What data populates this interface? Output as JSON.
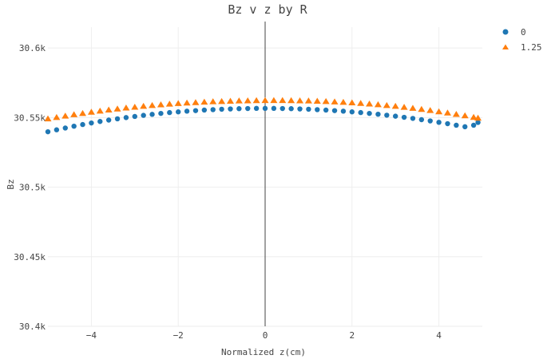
{
  "chart_data": {
    "type": "scatter",
    "title": "Bz v z by R",
    "xlabel": "Normalized z(cm)",
    "ylabel": "Bz",
    "xlim": [
      -5.0,
      5.0
    ],
    "ylim": [
      30400,
      30615
    ],
    "x_ticks": [
      -4,
      -2,
      0,
      2,
      4
    ],
    "x_tick_labels": [
      "−4",
      "−2",
      "0",
      "2",
      "4"
    ],
    "y_ticks": [
      30400,
      30450,
      30500,
      30550,
      30600
    ],
    "y_tick_labels": [
      "30.4k",
      "30.45k",
      "30.5k",
      "30.55k",
      "30.6k"
    ],
    "grid": true,
    "zero_line": true,
    "legend_position": "top-right",
    "series": [
      {
        "name": "0",
        "marker": "circle",
        "color": "#1f77b4",
        "x": [
          -5.0,
          -4.8,
          -4.6,
          -4.4,
          -4.2,
          -4.0,
          -3.8,
          -3.6,
          -3.4,
          -3.2,
          -3.0,
          -2.8,
          -2.6,
          -2.4,
          -2.2,
          -2.0,
          -1.8,
          -1.6,
          -1.4,
          -1.2,
          -1.0,
          -0.8,
          -0.6,
          -0.4,
          -0.2,
          0.0,
          0.2,
          0.4,
          0.6,
          0.8,
          1.0,
          1.2,
          1.4,
          1.6,
          1.8,
          2.0,
          2.2,
          2.4,
          2.6,
          2.8,
          3.0,
          3.2,
          3.4,
          3.6,
          3.8,
          4.0,
          4.2,
          4.4,
          4.6,
          4.8,
          4.9
        ],
        "y": [
          30539.8,
          30541.2,
          30542.5,
          30543.8,
          30545.0,
          30546.1,
          30547.2,
          30548.2,
          30549.1,
          30550.0,
          30550.8,
          30551.6,
          30552.3,
          30553.0,
          30553.6,
          30554.1,
          30554.6,
          30555.0,
          30555.4,
          30555.7,
          30556.0,
          30556.2,
          30556.4,
          30556.5,
          30556.6,
          30556.6,
          30556.6,
          30556.5,
          30556.4,
          30556.2,
          30556.0,
          30555.7,
          30555.4,
          30555.0,
          30554.6,
          30554.1,
          30553.6,
          30553.0,
          30552.4,
          30551.7,
          30551.0,
          30550.2,
          30549.4,
          30548.5,
          30547.6,
          30546.6,
          30545.6,
          30544.5,
          30543.4,
          30544.5,
          30546.5
        ]
      },
      {
        "name": "1.25",
        "marker": "triangle-up",
        "color": "#ff7f0e",
        "x": [
          -5.0,
          -4.8,
          -4.6,
          -4.4,
          -4.2,
          -4.0,
          -3.8,
          -3.6,
          -3.4,
          -3.2,
          -3.0,
          -2.8,
          -2.6,
          -2.4,
          -2.2,
          -2.0,
          -1.8,
          -1.6,
          -1.4,
          -1.2,
          -1.0,
          -0.8,
          -0.6,
          -0.4,
          -0.2,
          0.0,
          0.2,
          0.4,
          0.6,
          0.8,
          1.0,
          1.2,
          1.4,
          1.6,
          1.8,
          2.0,
          2.2,
          2.4,
          2.6,
          2.8,
          3.0,
          3.2,
          3.4,
          3.6,
          3.8,
          4.0,
          4.2,
          4.4,
          4.6,
          4.8,
          4.9
        ],
        "y": [
          30549.0,
          30550.0,
          30551.0,
          30552.0,
          30552.9,
          30553.8,
          30554.6,
          30555.4,
          30556.1,
          30556.8,
          30557.4,
          30558.0,
          30558.6,
          30559.1,
          30559.6,
          30560.0,
          30560.4,
          30560.7,
          30561.0,
          30561.3,
          30561.5,
          30561.7,
          30561.9,
          30562.0,
          30562.1,
          30562.2,
          30562.2,
          30562.2,
          30562.1,
          30562.0,
          30561.9,
          30561.7,
          30561.5,
          30561.2,
          30560.9,
          30560.5,
          30560.1,
          30559.7,
          30559.2,
          30558.6,
          30558.0,
          30557.3,
          30556.6,
          30555.8,
          30555.0,
          30554.1,
          30553.2,
          30552.2,
          30551.2,
          30550.1,
          30549.5
        ]
      }
    ]
  }
}
